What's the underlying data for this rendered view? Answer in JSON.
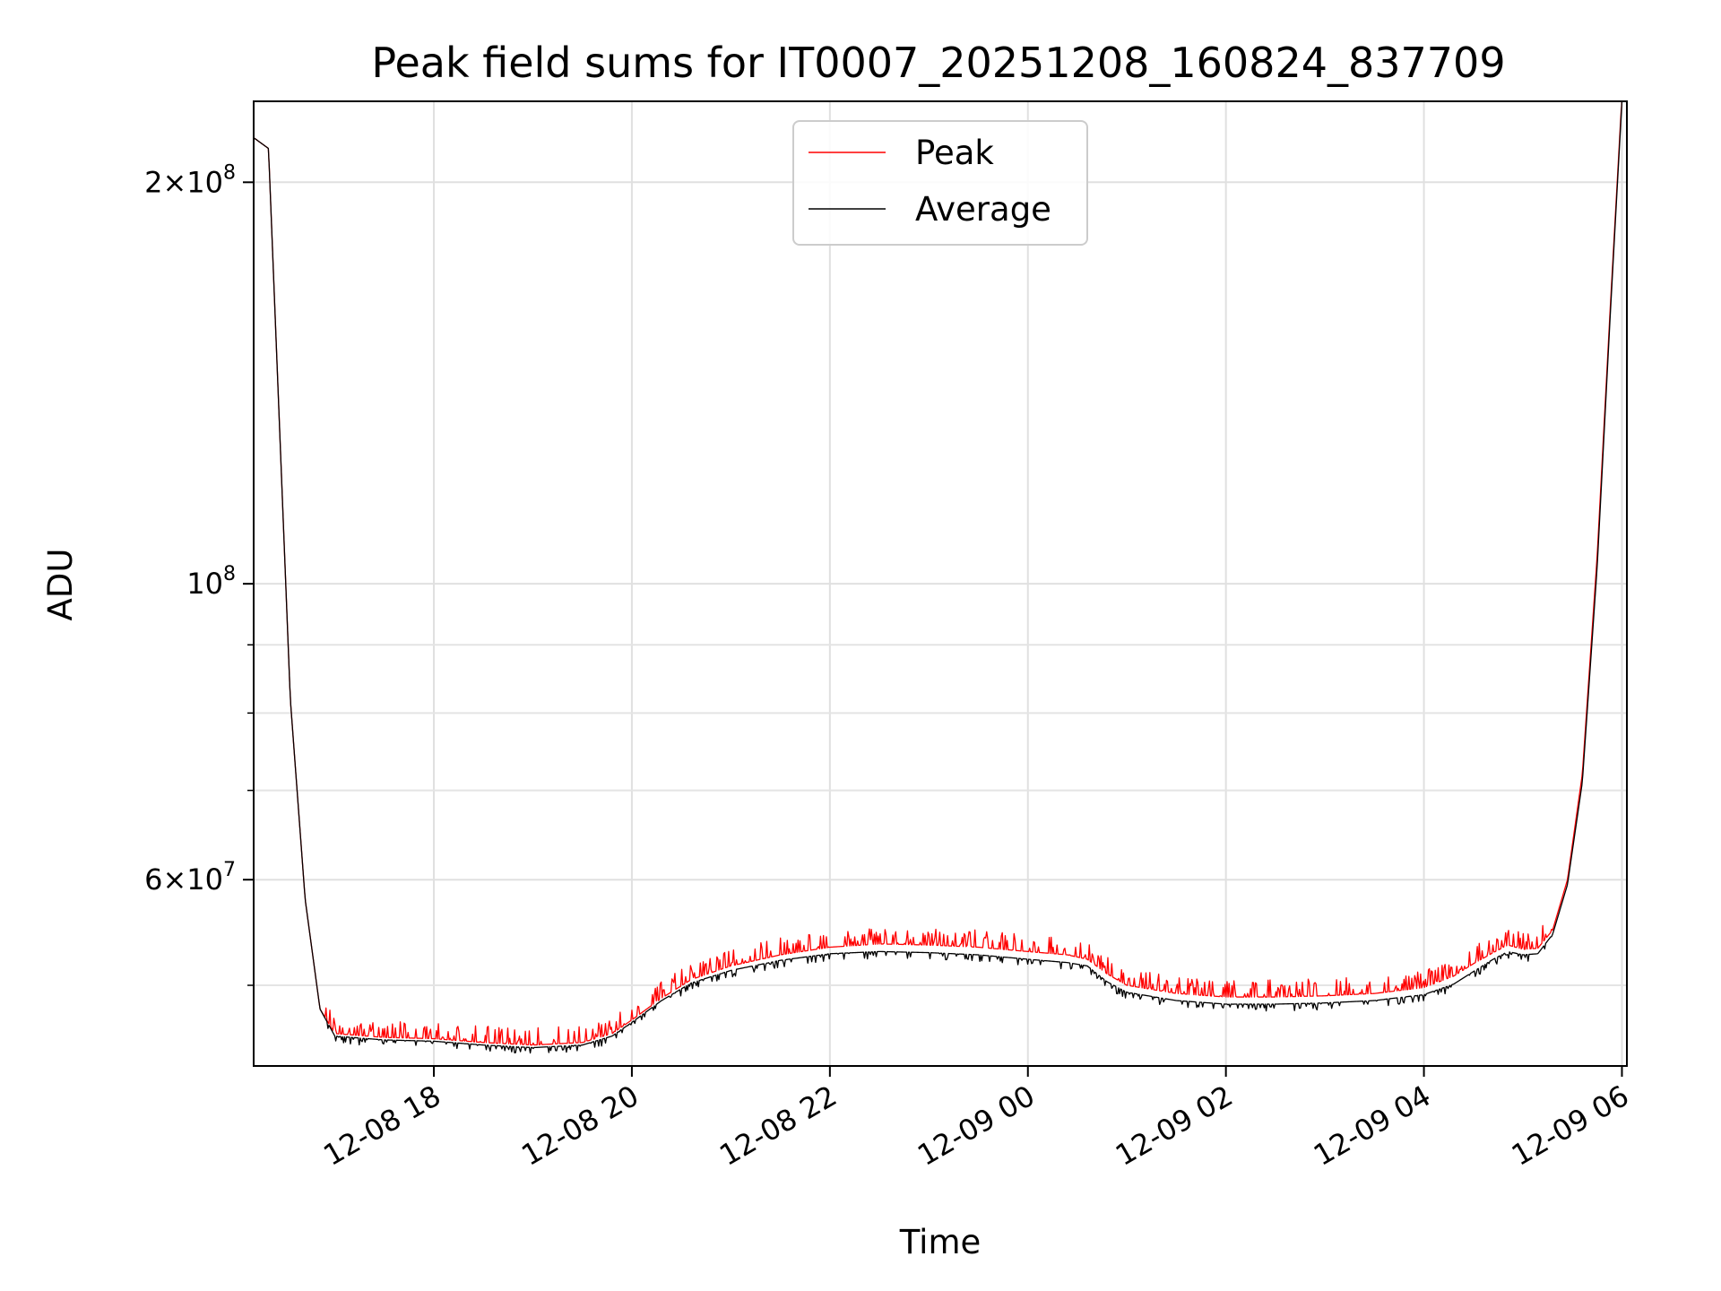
{
  "chart_data": {
    "type": "line",
    "title": "Peak field sums for IT0007_20251208_160824_837709",
    "xlabel": "Time",
    "ylabel": "ADU",
    "yscale": "log",
    "grid": true,
    "legend_position": "top-center",
    "x_unit": "hours since 12-08 00:00",
    "xlim": [
      16.18,
      30.05
    ],
    "ylim": [
      43500000,
      230000000
    ],
    "x_ticks": [
      {
        "value": 18,
        "label": "12-08 18"
      },
      {
        "value": 20,
        "label": "12-08 20"
      },
      {
        "value": 22,
        "label": "12-08 22"
      },
      {
        "value": 24,
        "label": "12-09 00"
      },
      {
        "value": 26,
        "label": "12-09 02"
      },
      {
        "value": 28,
        "label": "12-09 04"
      },
      {
        "value": 30,
        "label": "12-09 06"
      }
    ],
    "y_ticks": [
      {
        "value": 200000000,
        "mantissa": "2×10",
        "exponent": "8"
      },
      {
        "value": 100000000,
        "mantissa": "10",
        "exponent": "8"
      },
      {
        "value": 60000000,
        "mantissa": "6×10",
        "exponent": "7"
      }
    ],
    "y_minor_ticks": [
      50000000,
      70000000,
      80000000,
      90000000
    ],
    "series": [
      {
        "name": "Peak",
        "color": "#ff0000",
        "spike_amplitude": 0.03,
        "spike_density": 0.35,
        "points": [
          [
            16.18,
            216000000
          ],
          [
            16.33,
            212000000
          ],
          [
            16.55,
            82000000
          ],
          [
            16.7,
            58000000
          ],
          [
            16.85,
            48000000
          ],
          [
            17.0,
            46000000
          ],
          [
            17.5,
            45700000
          ],
          [
            18.0,
            45600000
          ],
          [
            18.5,
            45300000
          ],
          [
            19.0,
            45100000
          ],
          [
            19.5,
            45300000
          ],
          [
            19.8,
            46000000
          ],
          [
            20.0,
            47100000
          ],
          [
            20.3,
            48900000
          ],
          [
            20.6,
            50500000
          ],
          [
            21.0,
            51700000
          ],
          [
            21.5,
            52700000
          ],
          [
            22.0,
            53400000
          ],
          [
            22.5,
            53700000
          ],
          [
            23.0,
            53600000
          ],
          [
            23.5,
            53400000
          ],
          [
            24.0,
            53000000
          ],
          [
            24.4,
            52700000
          ],
          [
            24.6,
            52300000
          ],
          [
            24.8,
            51000000
          ],
          [
            25.0,
            50000000
          ],
          [
            25.5,
            49300000
          ],
          [
            26.0,
            49000000
          ],
          [
            26.5,
            49000000
          ],
          [
            27.0,
            49100000
          ],
          [
            27.5,
            49300000
          ],
          [
            28.0,
            49800000
          ],
          [
            28.3,
            50800000
          ],
          [
            28.5,
            51900000
          ],
          [
            28.7,
            52900000
          ],
          [
            28.85,
            53600000
          ],
          [
            29.0,
            53200000
          ],
          [
            29.15,
            53300000
          ],
          [
            29.3,
            55000000
          ],
          [
            29.45,
            60000000
          ],
          [
            29.6,
            72000000
          ],
          [
            29.75,
            105000000
          ],
          [
            29.88,
            160000000
          ],
          [
            30.0,
            232000000
          ]
        ]
      },
      {
        "name": "Average",
        "color": "#000000",
        "spike_amplitude": -0.012,
        "spike_density": 0.22,
        "points": [
          [
            16.18,
            216000000
          ],
          [
            16.33,
            212000000
          ],
          [
            16.55,
            82000000
          ],
          [
            16.7,
            58000000
          ],
          [
            16.85,
            48000000
          ],
          [
            17.0,
            45800000
          ],
          [
            17.5,
            45500000
          ],
          [
            18.0,
            45400000
          ],
          [
            18.5,
            45100000
          ],
          [
            19.0,
            44900000
          ],
          [
            19.5,
            45100000
          ],
          [
            19.8,
            45800000
          ],
          [
            20.0,
            46900000
          ],
          [
            20.3,
            48700000
          ],
          [
            20.6,
            50200000
          ],
          [
            21.0,
            51300000
          ],
          [
            21.5,
            52200000
          ],
          [
            22.0,
            52800000
          ],
          [
            22.5,
            53000000
          ],
          [
            23.0,
            52900000
          ],
          [
            23.5,
            52700000
          ],
          [
            24.0,
            52300000
          ],
          [
            24.4,
            52000000
          ],
          [
            24.6,
            51700000
          ],
          [
            24.8,
            50300000
          ],
          [
            25.0,
            49400000
          ],
          [
            25.5,
            48700000
          ],
          [
            26.0,
            48400000
          ],
          [
            26.5,
            48400000
          ],
          [
            27.0,
            48500000
          ],
          [
            27.5,
            48700000
          ],
          [
            28.0,
            49200000
          ],
          [
            28.3,
            50100000
          ],
          [
            28.5,
            51200000
          ],
          [
            28.7,
            52300000
          ],
          [
            28.85,
            53000000
          ],
          [
            29.0,
            52700000
          ],
          [
            29.15,
            52800000
          ],
          [
            29.3,
            54600000
          ],
          [
            29.45,
            59500000
          ],
          [
            29.6,
            71000000
          ],
          [
            29.75,
            103000000
          ],
          [
            29.88,
            158000000
          ],
          [
            30.0,
            230000000
          ]
        ]
      }
    ]
  }
}
